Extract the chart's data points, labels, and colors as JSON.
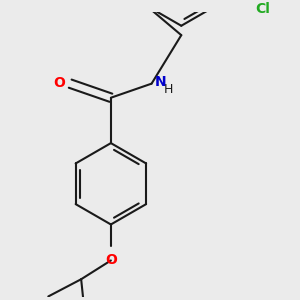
{
  "background_color": "#ebebeb",
  "bond_color": "#1a1a1a",
  "bond_width": 1.5,
  "atom_colors": {
    "O": "#ff0000",
    "N": "#0000cc",
    "Cl": "#22aa22",
    "H": "#1a1a1a"
  },
  "font_size": 10,
  "font_size_h": 9,
  "ring_r": 0.52,
  "scale": 1.0
}
